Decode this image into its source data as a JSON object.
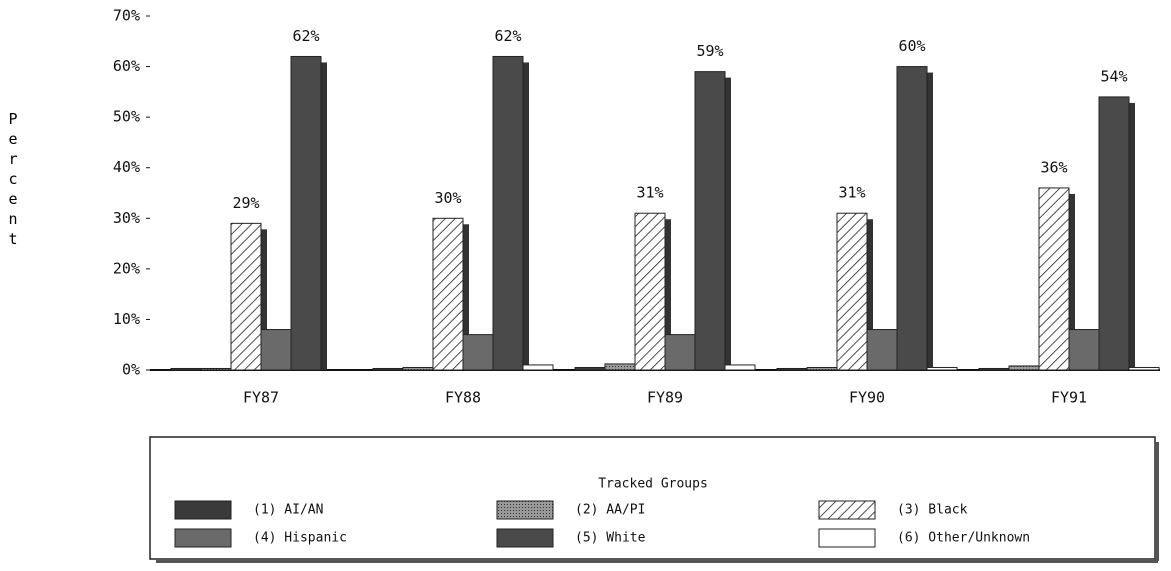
{
  "chart_data": {
    "type": "bar",
    "ylabel": "Percent",
    "categories": [
      "FY87",
      "FY88",
      "FY89",
      "FY90",
      "FY91"
    ],
    "series": [
      {
        "name": "(1) AI/AN",
        "color": "#3a3a3a",
        "values": [
          0.3,
          0.3,
          0.5,
          0.3,
          0.3
        ]
      },
      {
        "name": "(2) AA/PI",
        "color": "#888888",
        "pattern": "dots",
        "values": [
          0.3,
          0.5,
          1.2,
          0.5,
          0.8
        ]
      },
      {
        "name": "(3) Black",
        "color": "#ffffff",
        "pattern": "diagonal",
        "values": [
          29,
          30,
          31,
          31,
          36
        ],
        "value_labels": [
          "29%",
          "30%",
          "31%",
          "31%",
          "36%"
        ]
      },
      {
        "name": "(4) Hispanic",
        "color": "#6a6a6a",
        "values": [
          8,
          7,
          7,
          8,
          8
        ]
      },
      {
        "name": "(5) White",
        "color": "#4a4a4a",
        "values": [
          62,
          62,
          59,
          60,
          54
        ],
        "value_labels": [
          "62%",
          "62%",
          "59%",
          "60%",
          "54%"
        ]
      },
      {
        "name": "(6) Other/Unknown",
        "color": "#ffffff",
        "values": [
          0,
          1,
          1,
          0.5,
          0.5
        ]
      }
    ],
    "legend_title": "Tracked Groups",
    "ylim": [
      0,
      70
    ],
    "yticks": [
      {
        "value": 0,
        "label": "0%"
      },
      {
        "value": 10,
        "label": "10%"
      },
      {
        "value": 20,
        "label": "20%"
      },
      {
        "value": 30,
        "label": "30%"
      },
      {
        "value": 40,
        "label": "40%"
      },
      {
        "value": 50,
        "label": "50%"
      },
      {
        "value": 60,
        "label": "60%"
      },
      {
        "value": 70,
        "label": "70%"
      }
    ],
    "legend": "bottom"
  }
}
